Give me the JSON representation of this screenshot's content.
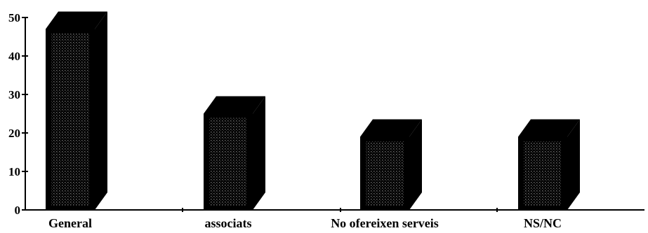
{
  "chart_data": {
    "type": "bar",
    "style": "3d-column",
    "categories": [
      "General",
      "associats",
      "No ofereixen serveis",
      "NS/NC"
    ],
    "values": [
      47,
      25,
      19,
      19
    ],
    "title": "",
    "xlabel": "",
    "ylabel": "",
    "ylim": [
      0,
      50
    ],
    "yticks": [
      0,
      10,
      20,
      30,
      40,
      50
    ],
    "grid": false,
    "legend": "none",
    "colors": {
      "bar_fill": "#000000",
      "bar_texture": "#bdbdbd",
      "axis": "#000000",
      "background": "#ffffff"
    }
  }
}
